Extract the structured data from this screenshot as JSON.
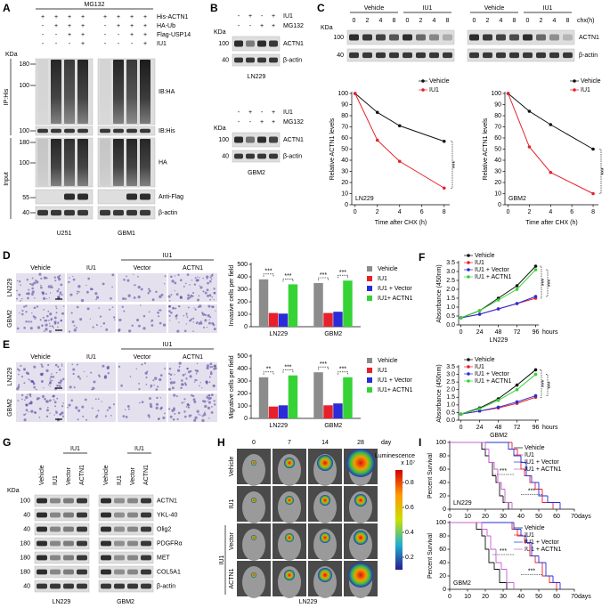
{
  "panel_labels": [
    "A",
    "B",
    "C",
    "D",
    "E",
    "F",
    "G",
    "H",
    "I"
  ],
  "a": {
    "top": "MG132",
    "signs": [
      {
        "label": "His-ACTN1",
        "values": [
          "+",
          "+",
          "+",
          "+",
          "+",
          "+",
          "+",
          "+"
        ]
      },
      {
        "label": "HA-Ub",
        "values": [
          "-",
          "+",
          "+",
          "+",
          "-",
          "+",
          "+",
          "+"
        ]
      },
      {
        "label": "Flag-USP14",
        "values": [
          "-",
          "-",
          "+",
          "+",
          "-",
          "-",
          "+",
          "+"
        ]
      },
      {
        "label": "IU1",
        "values": [
          "-",
          "-",
          "-",
          "+",
          "-",
          "-",
          "-",
          "+"
        ]
      }
    ],
    "unit": "KDa",
    "bands": [
      {
        "label": "IB:HA",
        "markers": [
          180,
          100
        ]
      },
      {
        "label": "IB:His",
        "markers": [
          100
        ]
      },
      {
        "label": "HA",
        "markers": [
          180,
          100
        ]
      },
      {
        "label": "Anti-Flag",
        "markers": [
          55
        ]
      },
      {
        "label": "β-actin",
        "markers": [
          40
        ]
      }
    ],
    "sections": [
      "IP:His",
      "Input"
    ],
    "cells": [
      "U251",
      "GBM1"
    ]
  },
  "b": {
    "blots": [
      {
        "signs": [
          {
            "label": "IU1",
            "values": [
              "-",
              "+",
              "-",
              "+"
            ]
          },
          {
            "label": "MG132",
            "values": [
              "-",
              "-",
              "+",
              "+"
            ]
          }
        ],
        "unit": "KDa",
        "bands": [
          {
            "label": "ACTN1",
            "marker": 100
          },
          {
            "label": "β-actin",
            "marker": 40
          }
        ],
        "cell": "LN229"
      },
      {
        "signs": [
          {
            "label": "IU1",
            "values": [
              "-",
              "+",
              "-",
              "+"
            ]
          },
          {
            "label": "MG132",
            "values": [
              "-",
              "-",
              "+",
              "+"
            ]
          }
        ],
        "unit": "KDa",
        "bands": [
          {
            "label": "ACTN1",
            "marker": 100
          },
          {
            "label": "β-actin",
            "marker": 40
          }
        ],
        "cell": "GBM2"
      }
    ]
  },
  "c": {
    "unit": "KDa",
    "markers": [
      100,
      40
    ],
    "time_label": "chx(h)",
    "bands": [
      "ACTN1",
      "β-actin"
    ],
    "blots": [
      {
        "groups": [
          "Vehicle",
          "IU1"
        ],
        "times": [
          0,
          2,
          4,
          8,
          0,
          2,
          4,
          8
        ]
      },
      {
        "groups": [
          "Vehicle",
          "IU1"
        ],
        "times": [
          0,
          2,
          4,
          8,
          0,
          2,
          4,
          8
        ]
      }
    ]
  },
  "d": {
    "columns": [
      "Vehicle",
      "IU1",
      "Vector",
      "ACTN1"
    ],
    "group": "IU1",
    "rows": [
      "LN229",
      "GBM2"
    ]
  },
  "e": {
    "columns": [
      "Vehicle",
      "IU1",
      "Vector",
      "ACTN1"
    ],
    "group": "IU1",
    "rows": [
      "LN229",
      "GBM2"
    ]
  },
  "g": {
    "columns": [
      "Vehicle",
      "IU1",
      "Vector",
      "ACTN1",
      "Vehicle",
      "IU1",
      "Vector",
      "ACTN1"
    ],
    "group": "IU1",
    "unit": "KDa",
    "bands": [
      {
        "label": "ACTN1",
        "marker": 100
      },
      {
        "label": "YKL-40",
        "marker": 40
      },
      {
        "label": "Olig2",
        "marker": 40
      },
      {
        "label": "PDGFRα",
        "marker": 180
      },
      {
        "label": "MET",
        "marker": 180
      },
      {
        "label": "COL5A1",
        "marker": 180
      },
      {
        "label": "β-actin",
        "marker": 40
      }
    ],
    "cells": [
      "LN229",
      "GBM2"
    ]
  },
  "h": {
    "days": [
      0,
      7,
      14,
      28
    ],
    "day_label": "day",
    "rows": [
      "Vehicle",
      "IU1",
      "Vector",
      "ACTN1"
    ],
    "group": "IU1",
    "cell": "LN229",
    "colorbar": {
      "title": "Luminescence",
      "unit": "x 10⁷",
      "lim": [
        0.1,
        0.9
      ],
      "ticks": [
        0.8,
        0.6,
        0.4,
        0.2
      ]
    }
  },
  "chart_data": [
    {
      "type": "line",
      "label": "LN229",
      "xlabel": "Time after CHX (h)",
      "ylabel": "Relative ACTN1 levels",
      "x": [
        0,
        2,
        4,
        8
      ],
      "xlim": [
        -0.3,
        8.5
      ],
      "xticks": [
        0,
        2,
        4,
        6,
        8
      ],
      "ylim": [
        0,
        100
      ],
      "yticks": [
        0,
        10,
        20,
        30,
        40,
        50,
        60,
        70,
        80,
        90,
        100
      ],
      "series": [
        {
          "name": "Vehicle",
          "color": "#111111",
          "values": [
            100,
            83,
            71,
            57
          ]
        },
        {
          "name": "IU1",
          "color": "#e8202a",
          "values": [
            100,
            58,
            39,
            15
          ]
        }
      ],
      "significance": [
        "***"
      ],
      "legend": "upper right"
    },
    {
      "type": "line",
      "label": "GBM2",
      "xlabel": "Time after CHX (h)",
      "ylabel": "Relative ACTN1 levels",
      "x": [
        0,
        2,
        4,
        8
      ],
      "xlim": [
        -0.3,
        8.5
      ],
      "xticks": [
        0,
        2,
        4,
        6,
        8
      ],
      "ylim": [
        0,
        100
      ],
      "yticks": [
        0,
        10,
        20,
        30,
        40,
        50,
        60,
        70,
        80,
        90,
        100
      ],
      "series": [
        {
          "name": "Vehicle",
          "color": "#111111",
          "values": [
            100,
            84,
            72,
            50
          ]
        },
        {
          "name": "IU1",
          "color": "#e8202a",
          "values": [
            100,
            52,
            29,
            10
          ]
        }
      ],
      "significance": [
        "***"
      ],
      "legend": "upper right"
    },
    {
      "type": "bar",
      "ylabel": "Invasive cells per field",
      "categories": [
        "LN229",
        "GBM2"
      ],
      "ylim": [
        0,
        500
      ],
      "yticks": [
        0,
        100,
        200,
        300,
        400,
        500
      ],
      "series": [
        {
          "name": "Vehicle",
          "color": "#8c8c8c",
          "values": [
            380,
            350
          ]
        },
        {
          "name": "IU1",
          "color": "#e8202a",
          "values": [
            110,
            110
          ]
        },
        {
          "name": "IU1 + Vector",
          "color": "#2b2bd9",
          "values": [
            105,
            120
          ]
        },
        {
          "name": "IU1+ ACTN1",
          "color": "#35d335",
          "values": [
            340,
            370
          ]
        }
      ],
      "significance": [
        "***",
        "***",
        "***",
        "***"
      ],
      "legend": "right"
    },
    {
      "type": "bar",
      "ylabel": "Migrative cells per field",
      "categories": [
        "LN229",
        "GBM2"
      ],
      "ylim": [
        0,
        500
      ],
      "yticks": [
        0,
        100,
        200,
        300,
        400,
        500
      ],
      "series": [
        {
          "name": "Vehicle",
          "color": "#8c8c8c",
          "values": [
            330,
            370
          ]
        },
        {
          "name": "IU1",
          "color": "#e8202a",
          "values": [
            95,
            105
          ]
        },
        {
          "name": "IU1 + Vector",
          "color": "#2b2bd9",
          "values": [
            105,
            120
          ]
        },
        {
          "name": "IU1+ ACTN1",
          "color": "#35d335",
          "values": [
            345,
            330
          ]
        }
      ],
      "significance": [
        "**",
        "***",
        "***",
        "***"
      ],
      "legend": "right"
    },
    {
      "type": "line",
      "label": "LN229",
      "xunit": "hours",
      "ylabel": "Absorbance (450nm)",
      "x": [
        0,
        24,
        48,
        72,
        96
      ],
      "xlim": [
        -3,
        100
      ],
      "xticks": [
        0,
        24,
        48,
        72,
        96
      ],
      "ylim": [
        0,
        3.5
      ],
      "yticks": [
        {
          "value": 0,
          "label": "0.0"
        },
        0.5,
        {
          "value": 1,
          "label": "1.0"
        },
        1.5,
        {
          "value": 2,
          "label": "2.0"
        },
        2.5,
        {
          "value": 3,
          "label": "3.0"
        },
        3.5
      ],
      "series": [
        {
          "name": "Vehicle",
          "color": "#111111",
          "values": [
            0.4,
            0.8,
            1.5,
            2.2,
            3.3
          ]
        },
        {
          "name": "IU1",
          "color": "#e8202a",
          "values": [
            0.4,
            0.6,
            0.9,
            1.2,
            1.5
          ]
        },
        {
          "name": "IU1 + Vector",
          "color": "#2b2bd9",
          "values": [
            0.4,
            0.6,
            0.9,
            1.2,
            1.6
          ]
        },
        {
          "name": "IU1 + ACTN1",
          "color": "#35d335",
          "values": [
            0.4,
            0.8,
            1.4,
            2.0,
            3.1
          ]
        }
      ],
      "significance": [
        "***",
        "***"
      ],
      "legend": "upper left"
    },
    {
      "type": "line",
      "label": "GBM2",
      "xunit": "hours",
      "ylabel": "Absorbance (450nm)",
      "x": [
        0,
        24,
        48,
        72,
        96
      ],
      "xlim": [
        -3,
        100
      ],
      "xticks": [
        0,
        24,
        48,
        72,
        96
      ],
      "ylim": [
        0,
        3.5
      ],
      "yticks": [
        {
          "value": 0,
          "label": "0.0"
        },
        0.5,
        {
          "value": 1,
          "label": "1.0"
        },
        1.5,
        {
          "value": 2,
          "label": "2.0"
        },
        2.5,
        {
          "value": 3,
          "label": "3.0"
        },
        3.5
      ],
      "series": [
        {
          "name": "Vehicle",
          "color": "#111111",
          "values": [
            0.4,
            0.8,
            1.4,
            2.3,
            3.3
          ]
        },
        {
          "name": "IU1",
          "color": "#e8202a",
          "values": [
            0.4,
            0.6,
            0.8,
            1.1,
            1.5
          ]
        },
        {
          "name": "IU1 + Vector",
          "color": "#2b2bd9",
          "values": [
            0.4,
            0.6,
            0.85,
            1.2,
            1.6
          ]
        },
        {
          "name": "IU1 + ACTN1",
          "color": "#35d335",
          "values": [
            0.4,
            0.75,
            1.3,
            2.0,
            3.0
          ]
        }
      ],
      "significance": [
        "***",
        "***"
      ],
      "legend": "upper left"
    },
    {
      "type": "step",
      "label": "LN229",
      "xunit": "days",
      "ylabel": "Percent Survival",
      "xlim": [
        0,
        70
      ],
      "xticks": [
        0,
        10,
        20,
        30,
        40,
        50,
        60,
        70
      ],
      "ylim": [
        0,
        100
      ],
      "yticks": [
        0,
        20,
        40,
        60,
        80,
        100
      ],
      "series": [
        {
          "name": "Vehicle",
          "color": "#111111",
          "x": [
            0,
            18,
            20,
            22,
            24,
            26,
            28,
            30,
            33
          ],
          "values": [
            100,
            90,
            80,
            70,
            50,
            40,
            20,
            10,
            0
          ]
        },
        {
          "name": "IU1",
          "color": "#e8202a",
          "x": [
            0,
            35,
            38,
            40,
            42,
            45,
            48,
            52,
            58
          ],
          "values": [
            100,
            90,
            80,
            60,
            50,
            40,
            30,
            10,
            0
          ]
        },
        {
          "name": "IU1 + Vector",
          "color": "#2b2bd9",
          "x": [
            0,
            33,
            36,
            40,
            43,
            46,
            50,
            55,
            62
          ],
          "values": [
            100,
            90,
            80,
            70,
            50,
            40,
            20,
            10,
            0
          ]
        },
        {
          "name": "IU1 + ACTN1",
          "color": "#c85bd0",
          "x": [
            0,
            20,
            22,
            25,
            27,
            29,
            31,
            35
          ],
          "values": [
            100,
            90,
            70,
            60,
            40,
            30,
            10,
            0
          ]
        }
      ],
      "significance": [
        "***",
        "***"
      ],
      "legend": "upper right"
    },
    {
      "type": "step",
      "label": "GBM2",
      "xunit": "days",
      "ylabel": "Percent Survival",
      "xlim": [
        0,
        70
      ],
      "xticks": [
        0,
        10,
        20,
        30,
        40,
        50,
        60,
        70
      ],
      "ylim": [
        0,
        100
      ],
      "yticks": [
        0,
        20,
        40,
        60,
        80,
        100
      ],
      "series": [
        {
          "name": "Vehicle",
          "color": "#111111",
          "x": [
            0,
            15,
            18,
            20,
            22,
            25,
            28,
            32
          ],
          "values": [
            100,
            90,
            80,
            60,
            40,
            30,
            10,
            0
          ]
        },
        {
          "name": "IU1",
          "color": "#e8202a",
          "x": [
            0,
            35,
            38,
            42,
            45,
            48,
            52,
            56,
            60
          ],
          "values": [
            100,
            90,
            80,
            70,
            50,
            40,
            20,
            10,
            0
          ]
        },
        {
          "name": "IU1 + Vector",
          "color": "#2b2bd9",
          "x": [
            0,
            36,
            40,
            43,
            46,
            50,
            54,
            58,
            62
          ],
          "values": [
            100,
            90,
            80,
            70,
            50,
            40,
            20,
            10,
            0
          ]
        },
        {
          "name": "IU1 + ACTN1",
          "color": "#c85bd0",
          "x": [
            0,
            18,
            21,
            23,
            26,
            29,
            32,
            36
          ],
          "values": [
            100,
            90,
            80,
            60,
            40,
            30,
            10,
            0
          ]
        }
      ],
      "significance": [
        "***",
        "***"
      ],
      "legend": "upper right"
    }
  ]
}
